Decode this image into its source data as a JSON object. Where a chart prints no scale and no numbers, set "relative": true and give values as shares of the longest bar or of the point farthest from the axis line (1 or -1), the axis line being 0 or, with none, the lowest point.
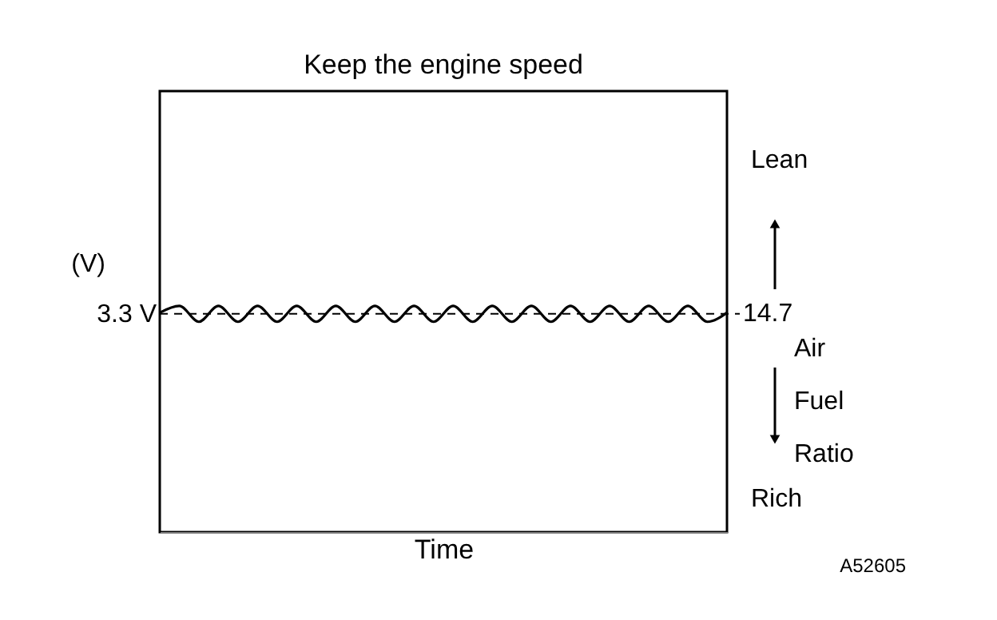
{
  "chart_data": {
    "type": "line",
    "relative": true,
    "title": "Keep the engine speed",
    "xlabel": "Time",
    "ylabel": "(V)",
    "y2label": "Air Fuel Ratio",
    "categories": [
      null,
      null,
      null,
      null,
      null,
      null,
      null,
      null,
      null,
      null,
      null,
      null,
      null,
      null,
      null,
      null,
      null,
      null,
      null,
      null,
      null,
      null,
      null,
      null,
      null,
      null,
      null,
      null,
      null,
      null
    ],
    "series": [
      {
        "color": "#000000",
        "values": [
          0.97,
          1,
          0.93,
          1,
          0.93,
          1,
          0.93,
          1,
          0.93,
          1,
          0.93,
          1,
          0.93,
          1,
          0.93,
          1,
          0.93,
          1,
          0.93,
          1,
          0.93,
          1,
          0.93,
          1,
          0.93,
          1,
          0.93,
          1,
          0.93,
          0.97
        ]
      }
    ],
    "ref_lines": [
      {
        "axis": "y",
        "value": 0.965,
        "label": "3.3 V",
        "color": "#000000",
        "line_style": "dashed"
      }
    ],
    "annotations": [
      "14.7",
      "Lean",
      "Rich",
      "A52605"
    ],
    "grid": false,
    "marker": "none",
    "line_style": "solid"
  }
}
